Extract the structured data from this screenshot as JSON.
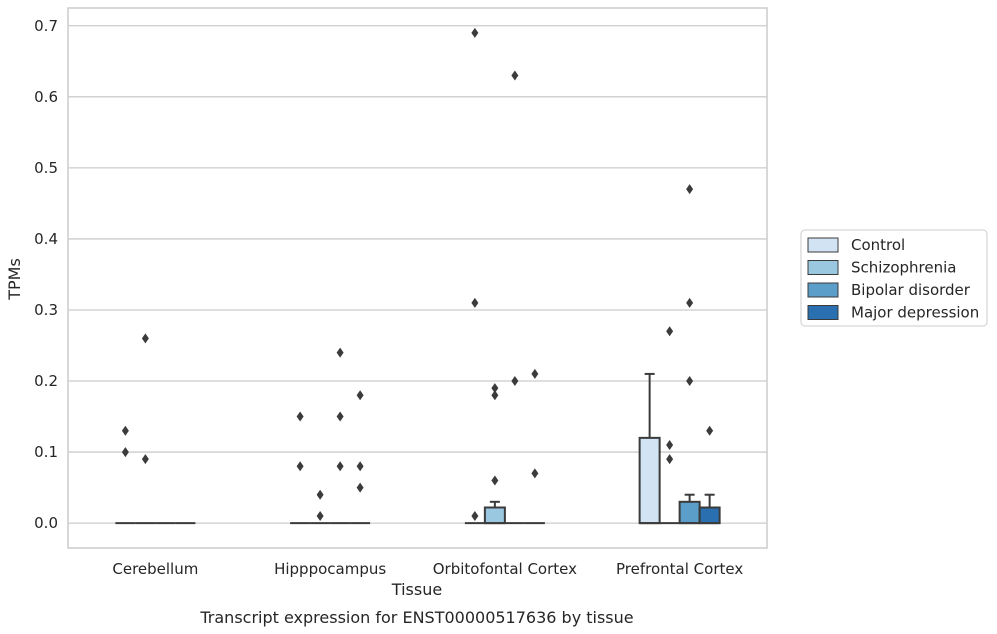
{
  "caption": "Transcript expression for ENST00000517636 by tissue",
  "chart_data": {
    "type": "box",
    "xlabel": "Tissue",
    "ylabel": "TPMs",
    "ylim": [
      -0.035,
      0.725
    ],
    "yticks": [
      0.0,
      0.1,
      0.2,
      0.3,
      0.4,
      0.5,
      0.6,
      0.7
    ],
    "ytick_labels": [
      "0.0",
      "0.1",
      "0.2",
      "0.3",
      "0.4",
      "0.5",
      "0.6",
      "0.7"
    ],
    "grid": "horizontal",
    "legend_placement": "right",
    "categories": [
      "Cerebellum",
      "Hipppocampus",
      "Orbitofontal Cortex",
      "Prefrontal Cortex"
    ],
    "series": [
      {
        "name": "Control",
        "color": "#d2e3f3",
        "boxes": [
          {
            "q1": 0,
            "median": 0,
            "q3": 0,
            "whislo": 0,
            "whishi": 0,
            "fliers": [
              0.13,
              0.1
            ]
          },
          {
            "q1": 0,
            "median": 0,
            "q3": 0,
            "whislo": 0,
            "whishi": 0,
            "fliers": [
              0.15,
              0.08
            ]
          },
          {
            "q1": 0,
            "median": 0,
            "q3": 0,
            "whislo": 0,
            "whishi": 0,
            "fliers": [
              0.69,
              0.31,
              0.01
            ]
          },
          {
            "q1": 0,
            "median": 0,
            "q3": 0.12,
            "whislo": 0,
            "whishi": 0.21,
            "fliers": []
          }
        ]
      },
      {
        "name": "Schizophrenia",
        "color": "#9ac8e0",
        "boxes": [
          {
            "q1": 0,
            "median": 0,
            "q3": 0,
            "whislo": 0,
            "whishi": 0,
            "fliers": [
              0.26,
              0.09
            ]
          },
          {
            "q1": 0,
            "median": 0,
            "q3": 0,
            "whislo": 0,
            "whishi": 0,
            "fliers": [
              0.04,
              0.01
            ]
          },
          {
            "q1": 0,
            "median": 0,
            "q3": 0.022,
            "whislo": 0,
            "whishi": 0.03,
            "fliers": [
              0.19,
              0.18,
              0.06
            ]
          },
          {
            "q1": 0,
            "median": 0,
            "q3": 0,
            "whislo": 0,
            "whishi": 0,
            "fliers": [
              0.27,
              0.11,
              0.09
            ]
          }
        ]
      },
      {
        "name": "Bipolar disorder",
        "color": "#5a9ec9",
        "boxes": [
          {
            "q1": 0,
            "median": 0,
            "q3": 0,
            "whislo": 0,
            "whishi": 0,
            "fliers": []
          },
          {
            "q1": 0,
            "median": 0,
            "q3": 0,
            "whislo": 0,
            "whishi": 0,
            "fliers": [
              0.24,
              0.15,
              0.08
            ]
          },
          {
            "q1": 0,
            "median": 0,
            "q3": 0,
            "whislo": 0,
            "whishi": 0,
            "fliers": [
              0.63,
              0.2
            ]
          },
          {
            "q1": 0,
            "median": 0,
            "q3": 0.03,
            "whislo": 0,
            "whishi": 0.04,
            "fliers": [
              0.47,
              0.31,
              0.2
            ]
          }
        ]
      },
      {
        "name": "Major depression",
        "color": "#2a6fb0",
        "boxes": [
          {
            "q1": 0,
            "median": 0,
            "q3": 0,
            "whislo": 0,
            "whishi": 0,
            "fliers": []
          },
          {
            "q1": 0,
            "median": 0,
            "q3": 0,
            "whislo": 0,
            "whishi": 0,
            "fliers": [
              0.18,
              0.08,
              0.05
            ]
          },
          {
            "q1": 0,
            "median": 0,
            "q3": 0,
            "whislo": 0,
            "whishi": 0,
            "fliers": [
              0.21,
              0.07
            ]
          },
          {
            "q1": 0,
            "median": 0,
            "q3": 0.022,
            "whislo": 0,
            "whishi": 0.04,
            "fliers": [
              0.13
            ]
          }
        ]
      }
    ]
  }
}
